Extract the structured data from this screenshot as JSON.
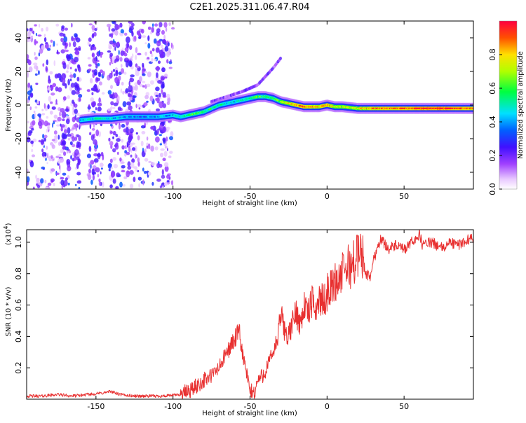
{
  "chart_data": [
    {
      "type": "heatmap",
      "title": "C2E1.2025.311.06.47.R04",
      "xlabel": "Height of straight line (km)",
      "ylabel": "Frequency (Hz)",
      "xlim": [
        -195,
        95
      ],
      "ylim": [
        -50,
        50
      ],
      "xticks": [
        -150,
        -100,
        -50,
        0,
        50
      ],
      "yticks": [
        -40,
        -20,
        0,
        20,
        40
      ],
      "xtick_labels": [
        "-150",
        "-100",
        "-50",
        "0",
        "50"
      ],
      "ytick_labels": [
        "-40",
        "-20",
        "0",
        "20",
        "40"
      ],
      "colorbar": {
        "label": "Normalized spectral amplitude",
        "range": [
          0,
          1
        ],
        "ticks": [
          0.0,
          0.2,
          0.4,
          0.6,
          0.8
        ],
        "tick_labels": [
          "0.0",
          "0.2",
          "0.4",
          "0.6",
          "0.8"
        ]
      },
      "ridge": {
        "x": [
          -160,
          -150,
          -140,
          -130,
          -120,
          -110,
          -100,
          -95,
          -90,
          -85,
          -80,
          -75,
          -70,
          -65,
          -60,
          -55,
          -50,
          -45,
          -40,
          -35,
          -30,
          -25,
          -20,
          -15,
          -10,
          -5,
          0,
          5,
          10,
          20,
          30,
          40,
          50,
          60,
          70,
          80,
          90,
          95
        ],
        "y": [
          -9,
          -8,
          -8,
          -7,
          -7,
          -7,
          -6,
          -7,
          -6,
          -5,
          -4,
          -2,
          0,
          1,
          2,
          3,
          4,
          5,
          5,
          4,
          2,
          1,
          0,
          -1,
          -1,
          -1,
          0,
          -1,
          -1,
          -2,
          -2,
          -2,
          -2,
          -2,
          -2,
          -2,
          -2,
          -2
        ],
        "amplitude": [
          0.4,
          0.5,
          0.45,
          0.35,
          0.35,
          0.4,
          0.4,
          0.5,
          0.55,
          0.6,
          0.55,
          0.55,
          0.5,
          0.45,
          0.45,
          0.5,
          0.55,
          0.6,
          0.55,
          0.55,
          0.65,
          0.75,
          0.85,
          0.9,
          0.85,
          0.8,
          0.85,
          0.7,
          0.7,
          0.75,
          0.85,
          0.9,
          0.9,
          0.95,
          0.95,
          0.95,
          0.9,
          0.85
        ]
      },
      "faint_branch": {
        "x": [
          -75,
          -65,
          -55,
          -45,
          -35,
          -30
        ],
        "y": [
          2,
          5,
          8,
          12,
          22,
          28
        ]
      },
      "noise_regions": [
        [
          -195,
          -160
        ],
        [
          -155,
          -145
        ],
        [
          -142,
          -100
        ]
      ]
    },
    {
      "type": "line",
      "xlabel": "Height of straight line (km)",
      "ylabel": "SNR (10 * v/v)",
      "y_multiplier": "(x10",
      "y_multiplier_exp": "4",
      "y_multiplier_close": ")",
      "xlim": [
        -195,
        95
      ],
      "ylim": [
        0,
        1.08
      ],
      "xticks": [
        -150,
        -100,
        -50,
        0,
        50
      ],
      "yticks": [
        0.2,
        0.4,
        0.6,
        0.8,
        1.0
      ],
      "xtick_labels": [
        "-150",
        "-100",
        "-50",
        "0",
        "50"
      ],
      "ytick_labels": [
        "0.2",
        "0.4",
        "0.6",
        "0.8",
        "1.0"
      ],
      "series": [
        {
          "name": "SNR",
          "color": "#e83030",
          "x": [
            -195,
            -185,
            -175,
            -165,
            -155,
            -145,
            -140,
            -135,
            -125,
            -115,
            -105,
            -95,
            -90,
            -85,
            -80,
            -75,
            -70,
            -65,
            -60,
            -57,
            -55,
            -52,
            -50,
            -47,
            -45,
            -42,
            -40,
            -37,
            -35,
            -32,
            -30,
            -28,
            -25,
            -22,
            -20,
            -17,
            -15,
            -12,
            -10,
            -7,
            -5,
            -2,
            0,
            3,
            5,
            8,
            10,
            13,
            15,
            18,
            20,
            23,
            25,
            28,
            30,
            33,
            35,
            40,
            45,
            50,
            55,
            58,
            60,
            62,
            65,
            70,
            75,
            80,
            85,
            90,
            95
          ],
          "y": [
            0.02,
            0.02,
            0.03,
            0.02,
            0.03,
            0.04,
            0.05,
            0.03,
            0.02,
            0.02,
            0.02,
            0.03,
            0.05,
            0.08,
            0.12,
            0.15,
            0.2,
            0.3,
            0.38,
            0.42,
            0.3,
            0.15,
            0.05,
            0.04,
            0.12,
            0.15,
            0.18,
            0.25,
            0.3,
            0.38,
            0.55,
            0.45,
            0.4,
            0.5,
            0.55,
            0.48,
            0.6,
            0.55,
            0.62,
            0.58,
            0.64,
            0.62,
            0.68,
            0.72,
            0.74,
            0.78,
            0.8,
            0.85,
            0.84,
            0.88,
            0.92,
            0.92,
            0.8,
            0.78,
            0.88,
            0.98,
            1.02,
            0.96,
            0.98,
            0.95,
            1.0,
            1.03,
            1.05,
            0.98,
            1.0,
            0.99,
            0.96,
            1.0,
            0.98,
            1.01,
            1.03
          ]
        }
      ]
    }
  ]
}
